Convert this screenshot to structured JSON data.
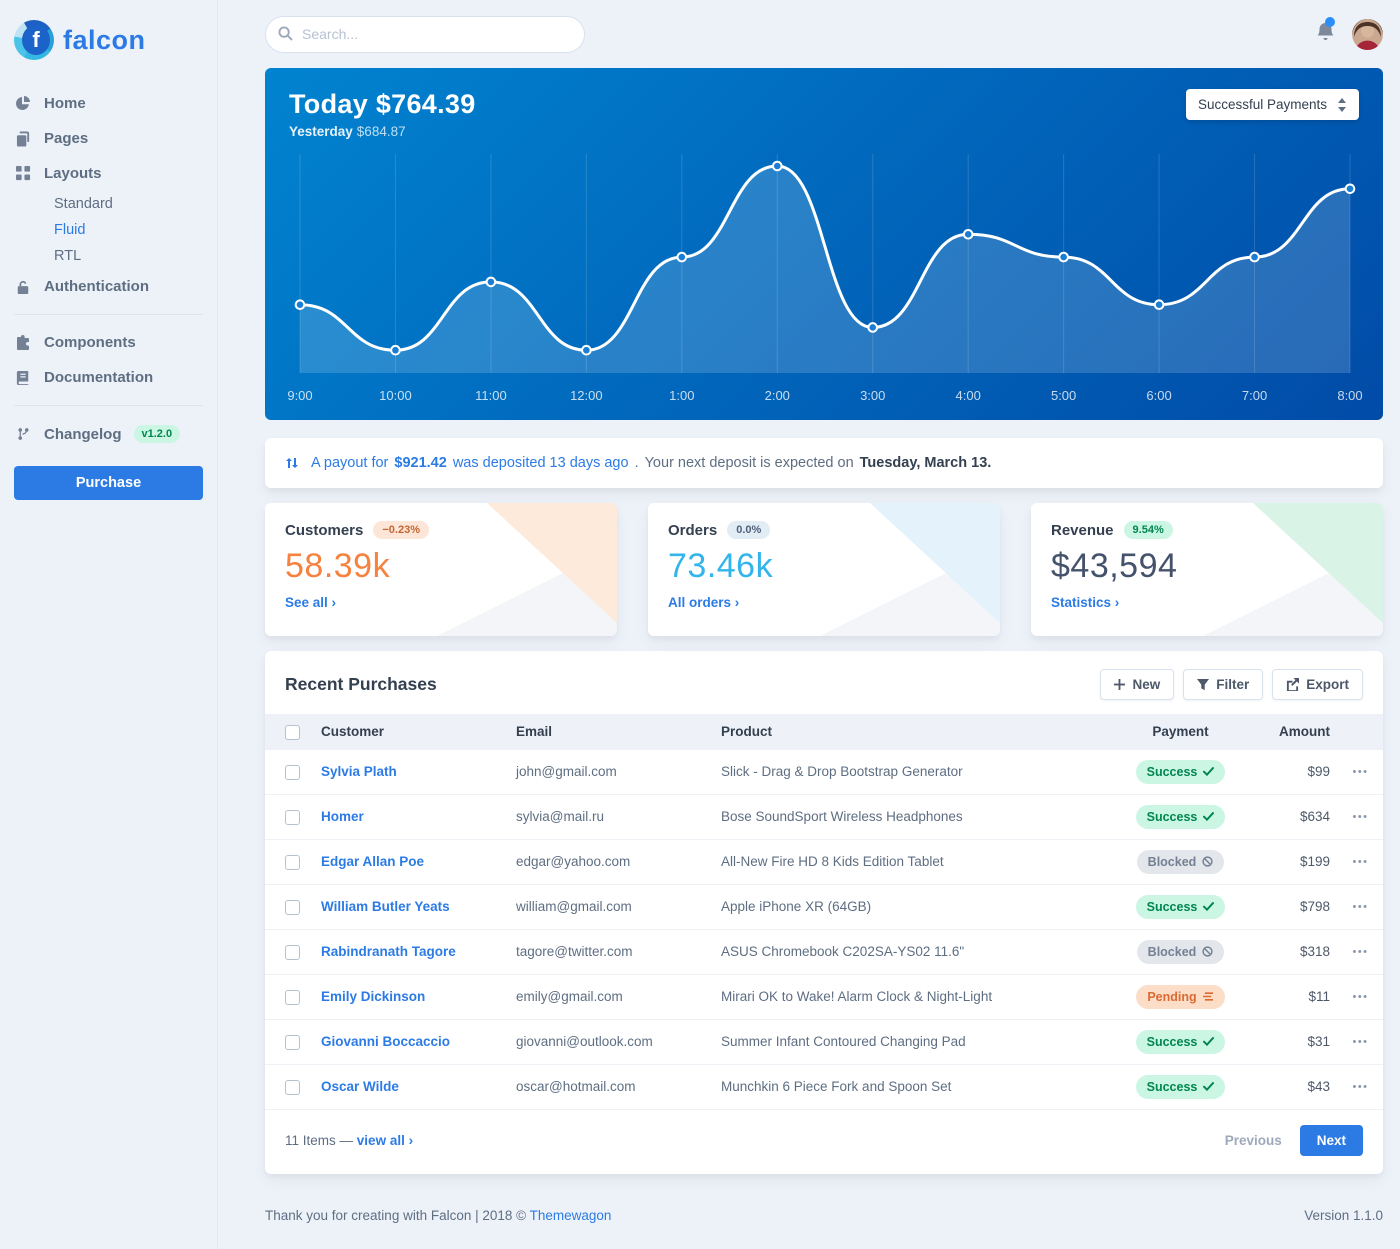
{
  "brand": {
    "name": "falcon"
  },
  "topbar": {
    "search_placeholder": "Search..."
  },
  "sidebar": {
    "home": "Home",
    "pages": "Pages",
    "layouts": "Layouts",
    "layouts_children": {
      "standard": "Standard",
      "fluid": "Fluid",
      "rtl": "RTL"
    },
    "active_item": "Fluid",
    "authentication": "Authentication",
    "components": "Components",
    "documentation": "Documentation",
    "changelog": "Changelog",
    "changelog_badge": "v1.2.0",
    "purchase": "Purchase"
  },
  "payments_card": {
    "today_label": "Today",
    "today_value": "$764.39",
    "yesterday_label": "Yesterday",
    "yesterday_value": "$684.87",
    "select_value": "Successful Payments"
  },
  "chart_data": {
    "type": "area",
    "title": "Successful payments today by hour",
    "x": [
      "9:00",
      "10:00",
      "11:00",
      "12:00",
      "1:00",
      "2:00",
      "3:00",
      "4:00",
      "5:00",
      "6:00",
      "7:00",
      "8:00"
    ],
    "values": [
      33,
      11,
      44,
      11,
      56,
      100,
      22,
      67,
      56,
      33,
      56,
      89
    ],
    "value_scale": "relative 0-100 (no y-axis labels shown)",
    "ylim": [
      0,
      110
    ],
    "grid": "vertical-only",
    "legend": "none",
    "line_color": "#ffffff",
    "bg_gradient": [
      "#0183d0",
      "#014ba7"
    ]
  },
  "notice": {
    "a": "A payout for",
    "amount": "$921.42",
    "b": "was deposited 13 days ago",
    "dot": ".",
    "c": "Your next deposit is expected on",
    "date": "Tuesday, March 13."
  },
  "stats": [
    {
      "title": "Customers",
      "badge": "−0.23%",
      "value": "58.39k",
      "link": "See all",
      "accent": "#f5823f"
    },
    {
      "title": "Orders",
      "badge": "0.0%",
      "value": "73.46k",
      "link": "All orders",
      "accent": "#32b5ec"
    },
    {
      "title": "Revenue",
      "badge": "9.54%",
      "value": "$43,594",
      "link": "Statistics",
      "accent": "#45526b"
    }
  ],
  "purchases": {
    "title": "Recent Purchases",
    "buttons": {
      "new": "New",
      "filter": "Filter",
      "export": "Export"
    },
    "columns": [
      "Customer",
      "Email",
      "Product",
      "Payment",
      "Amount"
    ],
    "rows": [
      {
        "customer": "Sylvia Plath",
        "email": "john@gmail.com",
        "product": "Slick - Drag & Drop Bootstrap Generator",
        "payment": "Success",
        "amount": "$99"
      },
      {
        "customer": "Homer",
        "email": "sylvia@mail.ru",
        "product": "Bose SoundSport Wireless Headphones",
        "payment": "Success",
        "amount": "$634"
      },
      {
        "customer": "Edgar Allan Poe",
        "email": "edgar@yahoo.com",
        "product": "All-New Fire HD 8 Kids Edition Tablet",
        "payment": "Blocked",
        "amount": "$199"
      },
      {
        "customer": "William Butler Yeats",
        "email": "william@gmail.com",
        "product": "Apple iPhone XR (64GB)",
        "payment": "Success",
        "amount": "$798"
      },
      {
        "customer": "Rabindranath Tagore",
        "email": "tagore@twitter.com",
        "product": "ASUS Chromebook C202SA-YS02 11.6\"",
        "payment": "Blocked",
        "amount": "$318"
      },
      {
        "customer": "Emily Dickinson",
        "email": "emily@gmail.com",
        "product": "Mirari OK to Wake! Alarm Clock & Night-Light",
        "payment": "Pending",
        "amount": "$11"
      },
      {
        "customer": "Giovanni Boccaccio",
        "email": "giovanni@outlook.com",
        "product": "Summer Infant Contoured Changing Pad",
        "payment": "Success",
        "amount": "$31"
      },
      {
        "customer": "Oscar Wilde",
        "email": "oscar@hotmail.com",
        "product": "Munchkin 6 Piece Fork and Spoon Set",
        "payment": "Success",
        "amount": "$43"
      }
    ],
    "footer": {
      "items_text": "11 Items —",
      "view_all": "view all",
      "previous": "Previous",
      "next": "Next"
    }
  },
  "footer": {
    "left": "Thank you for creating with Falcon | 2018 ©",
    "link": "Themewagon",
    "right": "Version 1.1.0"
  },
  "icons": {
    "chevron_right": "›",
    "plus": "+",
    "dots": "•••",
    "names": [
      "search-icon",
      "bell-icon",
      "pie-chart-icon",
      "pages-icon",
      "layouts-grid-icon",
      "lock-icon",
      "puzzle-icon",
      "book-icon",
      "code-branch-icon",
      "exchange-icon",
      "filter-icon",
      "export-icon",
      "sort-icon",
      "check-icon",
      "ban-icon",
      "stream-icon",
      "ellipsis-icon"
    ]
  },
  "colors": {
    "primary": "#2c7be5",
    "success": "#00864e",
    "warning": "#dd6a33",
    "muted": "#5e6e82",
    "bg": "#edf2f9"
  }
}
